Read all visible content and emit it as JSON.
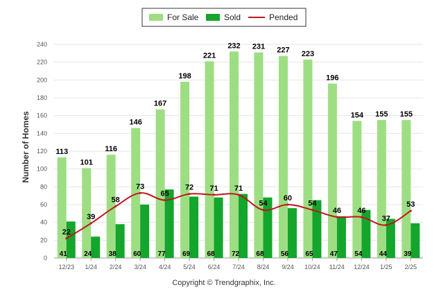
{
  "colors": {
    "for_sale": "#9ede83",
    "sold": "#14a52c",
    "pended": "#c0161c",
    "grid": "#e6e6e6",
    "axis": "#999999"
  },
  "legend": {
    "for_sale": "For Sale",
    "sold": "Sold",
    "pended": "Pended"
  },
  "copyright": "Copyright © Trendgraphix, Inc.",
  "chart_data": {
    "type": "bar",
    "title": "",
    "ylabel": "Number of Homes",
    "xlabel": "",
    "ylim": [
      0,
      240
    ],
    "yticks": [
      0,
      20,
      40,
      60,
      80,
      100,
      120,
      140,
      160,
      180,
      200,
      220,
      240
    ],
    "grid": true,
    "legend_position": "top-center",
    "categories": [
      "12/23",
      "1/24",
      "2/24",
      "3/24",
      "4/24",
      "5/24",
      "6/24",
      "7/24",
      "8/24",
      "9/24",
      "10/24",
      "11/24",
      "12/24",
      "1/25",
      "2/25"
    ],
    "series": [
      {
        "name": "For Sale",
        "type": "bar",
        "values": [
          113,
          101,
          116,
          146,
          167,
          198,
          221,
          232,
          231,
          227,
          223,
          196,
          154,
          155,
          155
        ]
      },
      {
        "name": "Sold",
        "type": "bar",
        "values": [
          41,
          24,
          38,
          60,
          77,
          69,
          68,
          72,
          68,
          56,
          65,
          47,
          54,
          44,
          39
        ]
      },
      {
        "name": "Pended",
        "type": "line",
        "values": [
          22,
          39,
          58,
          73,
          65,
          72,
          71,
          71,
          54,
          60,
          54,
          46,
          46,
          37,
          53
        ]
      }
    ]
  }
}
